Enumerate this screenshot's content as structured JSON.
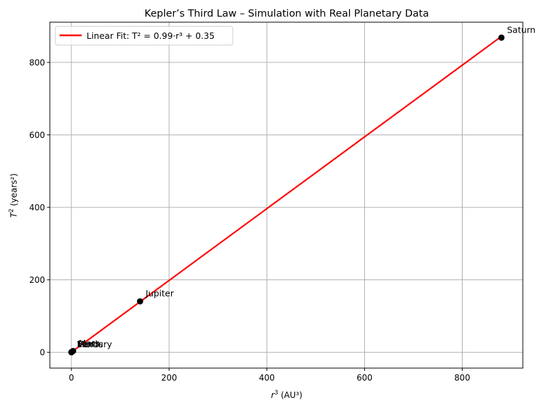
{
  "chart_data": {
    "type": "scatter",
    "title": "Kepler’s Third Law – Simulation with Real Planetary Data",
    "xlabel": {
      "base": "r",
      "sup": "3",
      "rest": " (AU³)"
    },
    "ylabel": {
      "base": "T",
      "sup": "2",
      "rest": " (years²)"
    },
    "xlim": [
      -44,
      924
    ],
    "ylim": [
      -43.6,
      911
    ],
    "xticks": [
      0,
      200,
      400,
      600,
      800
    ],
    "yticks": [
      0,
      200,
      400,
      600,
      800
    ],
    "grid": true,
    "legend_position": "top-left",
    "points": [
      {
        "label": "Mercury",
        "x": 0.06,
        "y": 0.06
      },
      {
        "label": "Venus",
        "x": 0.38,
        "y": 0.38
      },
      {
        "label": "Earth",
        "x": 1.0,
        "y": 1.0
      },
      {
        "label": "Mars",
        "x": 3.54,
        "y": 3.54
      },
      {
        "label": "Jupiter",
        "x": 140.6,
        "y": 140.6
      },
      {
        "label": "Saturn",
        "x": 880.2,
        "y": 868.4
      }
    ],
    "fit": {
      "name": "Linear Fit: T² = 0.99·r³ + 0.35",
      "slope": 0.99,
      "intercept": 0.35,
      "x_range": [
        0.06,
        880.2
      ]
    },
    "colors": {
      "points": "#000000",
      "fit": "#ff0000",
      "grid": "#b0b0b0"
    }
  }
}
